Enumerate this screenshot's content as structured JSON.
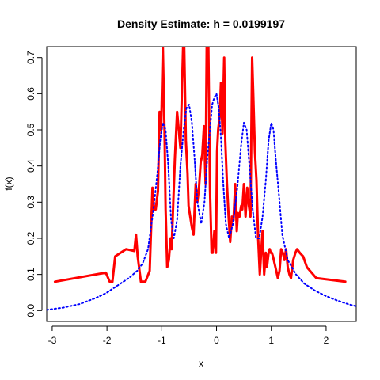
{
  "chart_data": {
    "type": "line",
    "title": "Density Estimate: h = 0.0199197",
    "xlabel": "x",
    "ylabel": "f(x)",
    "xlim": [
      -3.1,
      2.55
    ],
    "ylim": [
      -0.03,
      0.73
    ],
    "x_ticks": [
      -3,
      -2,
      -1,
      0,
      1,
      2
    ],
    "y_ticks": [
      0.0,
      0.1,
      0.2,
      0.3,
      0.4,
      0.5,
      0.6,
      0.7
    ],
    "x_tick_labels": [
      "-3",
      "-2",
      "-1",
      "0",
      "1",
      "2"
    ],
    "y_tick_labels": [
      "0.0",
      "0.1",
      "0.2",
      "0.3",
      "0.4",
      "0.5",
      "0.6",
      "0.7"
    ],
    "grid": false,
    "series": [
      {
        "style": "solid",
        "color": "#ff0000",
        "x": [
          -2.95,
          -2.02,
          -1.95,
          -1.9,
          -1.85,
          -1.75,
          -1.65,
          -1.5,
          -1.47,
          -1.44,
          -1.38,
          -1.3,
          -1.22,
          -1.17,
          -1.14,
          -1.11,
          -1.07,
          -1.04,
          -1.01,
          -0.98,
          -0.95,
          -0.93,
          -0.9,
          -0.87,
          -0.84,
          -0.82,
          -0.79,
          -0.76,
          -0.72,
          -0.69,
          -0.66,
          -0.61,
          -0.59,
          -0.56,
          -0.53,
          -0.51,
          -0.48,
          -0.45,
          -0.42,
          -0.38,
          -0.35,
          -0.32,
          -0.29,
          -0.26,
          -0.23,
          -0.2,
          -0.18,
          -0.15,
          -0.12,
          -0.09,
          -0.07,
          -0.04,
          -0.01,
          0.01,
          0.03,
          0.06,
          0.08,
          0.11,
          0.14,
          0.16,
          0.19,
          0.22,
          0.25,
          0.28,
          0.31,
          0.34,
          0.37,
          0.39,
          0.42,
          0.45,
          0.47,
          0.5,
          0.53,
          0.56,
          0.59,
          0.62,
          0.65,
          0.67,
          0.7,
          0.73,
          0.76,
          0.79,
          0.81,
          0.84,
          0.87,
          0.9,
          0.92,
          0.95,
          0.97,
          0.99,
          1.01,
          1.03,
          1.06,
          1.09,
          1.12,
          1.15,
          1.18,
          1.21,
          1.24,
          1.27,
          1.3,
          1.33,
          1.36,
          1.4,
          1.44,
          1.47,
          1.52,
          1.58,
          1.65,
          1.82,
          2.35
        ],
        "y": [
          0.08,
          0.105,
          0.08,
          0.08,
          0.15,
          0.16,
          0.17,
          0.165,
          0.21,
          0.15,
          0.08,
          0.08,
          0.11,
          0.34,
          0.28,
          0.28,
          0.33,
          0.55,
          0.5,
          0.73,
          0.5,
          0.28,
          0.12,
          0.14,
          0.2,
          0.17,
          0.3,
          0.42,
          0.55,
          0.5,
          0.45,
          0.73,
          0.73,
          0.47,
          0.38,
          0.29,
          0.26,
          0.23,
          0.21,
          0.35,
          0.3,
          0.34,
          0.41,
          0.43,
          0.51,
          0.35,
          0.73,
          0.73,
          0.34,
          0.16,
          0.16,
          0.22,
          0.16,
          0.44,
          0.5,
          0.54,
          0.63,
          0.49,
          0.7,
          0.47,
          0.35,
          0.26,
          0.19,
          0.26,
          0.25,
          0.35,
          0.22,
          0.27,
          0.26,
          0.29,
          0.28,
          0.35,
          0.26,
          0.34,
          0.29,
          0.26,
          0.7,
          0.6,
          0.44,
          0.36,
          0.2,
          0.1,
          0.15,
          0.22,
          0.1,
          0.16,
          0.12,
          0.16,
          0.17,
          0.16,
          0.16,
          0.15,
          0.13,
          0.11,
          0.09,
          0.11,
          0.17,
          0.16,
          0.14,
          0.17,
          0.12,
          0.1,
          0.09,
          0.14,
          0.16,
          0.17,
          0.16,
          0.15,
          0.12,
          0.09,
          0.08
        ]
      },
      {
        "style": "dotted",
        "color": "#0000ff",
        "x": [
          -3.1,
          -2.8,
          -2.5,
          -2.2,
          -2.0,
          -1.8,
          -1.6,
          -1.45,
          -1.35,
          -1.25,
          -1.15,
          -1.08,
          -1.03,
          -0.98,
          -0.93,
          -0.88,
          -0.83,
          -0.78,
          -0.72,
          -0.66,
          -0.6,
          -0.55,
          -0.5,
          -0.45,
          -0.4,
          -0.35,
          -0.28,
          -0.22,
          -0.17,
          -0.12,
          -0.08,
          -0.04,
          0.0,
          0.04,
          0.08,
          0.12,
          0.17,
          0.23,
          0.3,
          0.38,
          0.45,
          0.5,
          0.55,
          0.6,
          0.66,
          0.72,
          0.78,
          0.84,
          0.9,
          0.95,
          1.0,
          1.04,
          1.08,
          1.14,
          1.2,
          1.3,
          1.45,
          1.6,
          1.8,
          2.0,
          2.2,
          2.4,
          2.55
        ],
        "y": [
          0.002,
          0.008,
          0.018,
          0.035,
          0.05,
          0.07,
          0.09,
          0.11,
          0.13,
          0.17,
          0.28,
          0.38,
          0.47,
          0.52,
          0.5,
          0.4,
          0.25,
          0.2,
          0.25,
          0.4,
          0.5,
          0.56,
          0.57,
          0.52,
          0.42,
          0.3,
          0.24,
          0.3,
          0.42,
          0.5,
          0.57,
          0.59,
          0.6,
          0.56,
          0.48,
          0.36,
          0.24,
          0.2,
          0.24,
          0.34,
          0.46,
          0.52,
          0.5,
          0.4,
          0.28,
          0.2,
          0.2,
          0.26,
          0.36,
          0.47,
          0.52,
          0.5,
          0.42,
          0.32,
          0.21,
          0.14,
          0.1,
          0.075,
          0.055,
          0.04,
          0.028,
          0.018,
          0.012
        ]
      }
    ]
  }
}
